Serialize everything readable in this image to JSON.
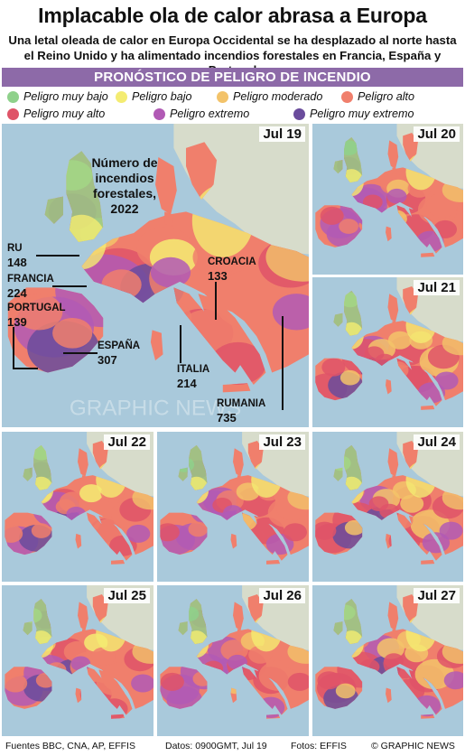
{
  "header": {
    "title": "Implacable ola de calor abrasa a Europa",
    "subtitle": "Una letal oleada de calor en Europa Occidental se ha desplazado al norte hasta el Reino Unido y ha alimentado incendios forestales en Francia, España y Portugal"
  },
  "section_title": "PRONÓSTICO DE PELIGRO DE INCENDIO",
  "legend": [
    {
      "label": "Peligro muy bajo",
      "color": "#8fd18b"
    },
    {
      "label": "Peligro bajo",
      "color": "#f4ec72"
    },
    {
      "label": "Peligro moderado",
      "color": "#f3c36a"
    },
    {
      "label": "Peligro alto",
      "color": "#f07f6c"
    },
    {
      "label": "Peligro muy alto",
      "color": "#df5468"
    },
    {
      "label": "Peligro extremo",
      "color": "#b15ab5"
    },
    {
      "label": "Peligro muy extremo",
      "color": "#6a4c9c"
    }
  ],
  "main_map": {
    "date": "Jul 19",
    "fires_title": "Número de incendios forestales, 2022",
    "fires": [
      {
        "name": "RU",
        "value": "148"
      },
      {
        "name": "FRANCIA",
        "value": "224"
      },
      {
        "name": "PORTUGAL",
        "value": "139"
      },
      {
        "name": "ESPAÑA",
        "value": "307"
      },
      {
        "name": "CROACIA",
        "value": "133"
      },
      {
        "name": "ITALIA",
        "value": "214"
      },
      {
        "name": "RUMANIA",
        "value": "735"
      }
    ]
  },
  "forecast_dates": [
    "Jul 20",
    "Jul 21",
    "Jul 22",
    "Jul 23",
    "Jul 24",
    "Jul 25",
    "Jul 26",
    "Jul 27"
  ],
  "watermark": "GRAPHIC NEWS",
  "footer": {
    "sources": "Fuentes BBC, CNA, AP, EFFIS",
    "data": "Datos: 0900GMT, Jul 19",
    "photos": "Fotos: EFFIS",
    "credit": "© GRAPHIC NEWS"
  }
}
